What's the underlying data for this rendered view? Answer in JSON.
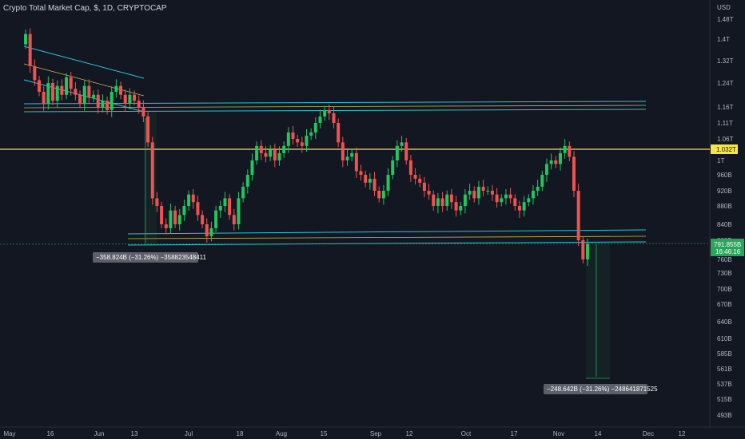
{
  "header": {
    "title": "Crypto Total Market Cap, $, 1D, CRYPTOCAP"
  },
  "colors": {
    "background": "#131722",
    "up": "#26a69a",
    "up_bright": "#22c55e",
    "down": "#ef5350",
    "channel": "#26c6da",
    "resistance": "#f5e642",
    "price_tag": "#26a65b"
  },
  "chart_data": {
    "type": "candlestick",
    "title": "Crypto Total Market Cap, $, 1D, CRYPTOCAP",
    "y_scale": "log",
    "ylim": [
      "493B",
      "1.52T"
    ],
    "y_ticks": [
      "USD",
      "1.48T",
      "1.4T",
      "1.32T",
      "1.24T",
      "1.16T",
      "1.11T",
      "1.06T",
      "1T",
      "960B",
      "920B",
      "880B",
      "840B",
      "800B",
      "760B",
      "730B",
      "700B",
      "670B",
      "640B",
      "610B",
      "585B",
      "561B",
      "537B",
      "515B",
      "493B"
    ],
    "x_ticks": [
      "May",
      "16",
      "Jun",
      "13",
      "Jul",
      "18",
      "Aug",
      "15",
      "Sep",
      "12",
      "Oct",
      "17",
      "Nov",
      "14",
      "Dec",
      "12"
    ],
    "last_price": {
      "value": "791.855B",
      "countdown": "16:46:16"
    },
    "resistance_level": "1.032T",
    "annotations": [
      {
        "text": "−358.824B (−31.26%) −358823548411"
      },
      {
        "text": "−248.642B (−31.26%) −248641871525"
      }
    ],
    "closes": [
      1420,
      1300,
      1250,
      1210,
      1170,
      1240,
      1180,
      1230,
      1200,
      1260,
      1220,
      1200,
      1170,
      1230,
      1190,
      1200,
      1160,
      1180,
      1150,
      1210,
      1230,
      1200,
      1170,
      1200,
      1180,
      1160,
      1130,
      1050,
      900,
      880,
      840,
      830,
      870,
      840,
      860,
      880,
      910,
      890,
      860,
      840,
      810,
      830,
      870,
      880,
      900,
      860,
      840,
      900,
      930,
      960,
      1000,
      1040,
      1020,
      1010,
      1030,
      1000,
      1020,
      1040,
      1080,
      1060,
      1050,
      1040,
      1070,
      1080,
      1110,
      1130,
      1150,
      1140,
      1110,
      1050,
      1000,
      1010,
      1020,
      970,
      960,
      940,
      950,
      920,
      900,
      920,
      960,
      1000,
      1040,
      1050,
      1000,
      960,
      950,
      940,
      920,
      910,
      880,
      900,
      880,
      910,
      890,
      870,
      880,
      910,
      920,
      900,
      930,
      920,
      920,
      910,
      890,
      900,
      910,
      900,
      880,
      870,
      890,
      900,
      920,
      930,
      960,
      990,
      1000,
      990,
      1020,
      1040,
      1010,
      920,
      800,
      760,
      791.855
    ]
  }
}
